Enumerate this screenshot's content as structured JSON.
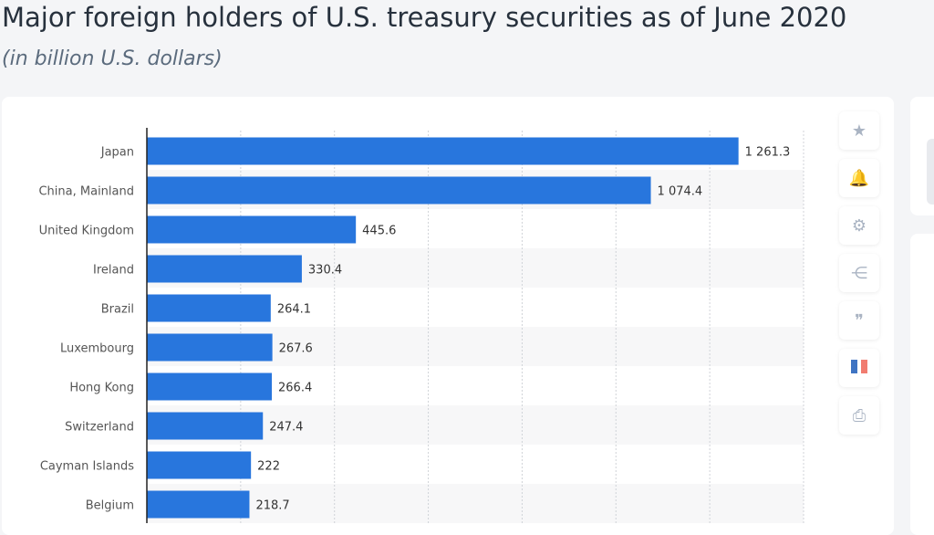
{
  "title": "Major foreign holders of U.S. treasury securities as of June 2020",
  "subtitle": "(in billion U.S. dollars)",
  "chart_data": {
    "type": "bar",
    "orientation": "horizontal",
    "categories": [
      "Japan",
      "China, Mainland",
      "United Kingdom",
      "Ireland",
      "Brazil",
      "Luxembourg",
      "Hong Kong",
      "Switzerland",
      "Cayman Islands",
      "Belgium"
    ],
    "values": [
      1261.3,
      1074.4,
      445.6,
      330.4,
      264.1,
      267.6,
      266.4,
      247.4,
      222,
      218.7
    ],
    "labels": [
      "1 261.3",
      "1 074.4",
      "445.6",
      "330.4",
      "264.1",
      "267.6",
      "266.4",
      "247.4",
      "222",
      "218.7"
    ],
    "xlim": [
      0,
      1400
    ],
    "grid_step": 200,
    "grid": true,
    "bar_color": "#2876dd"
  },
  "tools": [
    {
      "icon": "star-icon",
      "glyph": "★"
    },
    {
      "icon": "bell-icon",
      "glyph": "🔔"
    },
    {
      "icon": "gear-icon",
      "glyph": "⚙"
    },
    {
      "icon": "share-icon",
      "glyph": "⋲"
    },
    {
      "icon": "quote-icon",
      "glyph": "❞"
    },
    {
      "icon": "flag-icon",
      "glyph": ""
    },
    {
      "icon": "print-icon",
      "glyph": "⎙"
    }
  ]
}
